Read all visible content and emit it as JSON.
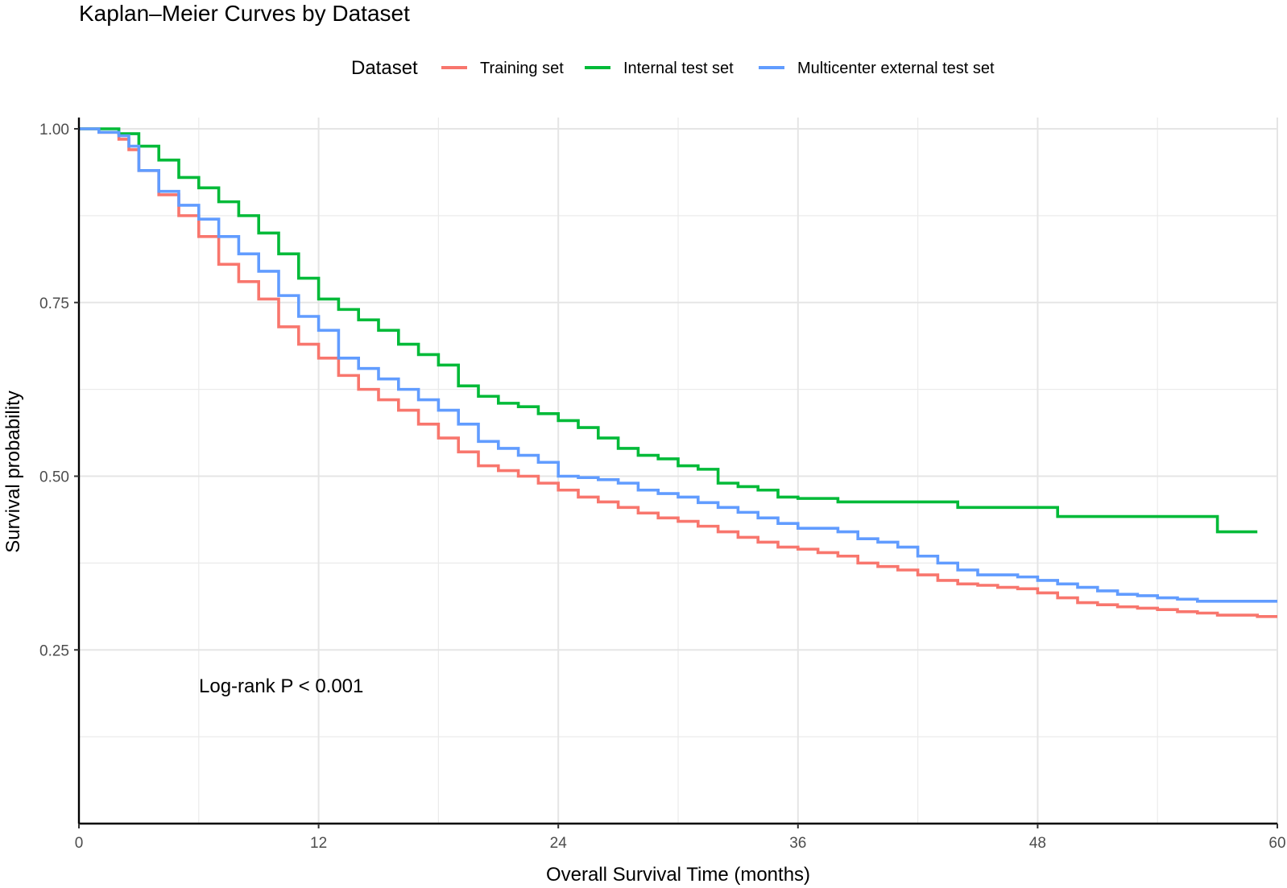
{
  "chart_data": {
    "type": "line",
    "step": true,
    "title": "Kaplan–Meier Curves by Dataset",
    "xlabel": "Overall Survival Time (months)",
    "ylabel": "Survival probability",
    "xlim": [
      0,
      60
    ],
    "ylim": [
      0,
      1
    ],
    "x_ticks": [
      0,
      12,
      24,
      36,
      48,
      60
    ],
    "x_tick_labels": [
      "0",
      "12",
      "24",
      "36",
      "48",
      "60"
    ],
    "y_ticks": [
      0.25,
      0.5,
      0.75,
      1.0
    ],
    "y_tick_labels": [
      "0.25",
      "0.50",
      "0.75",
      "1.00"
    ],
    "grid": true,
    "legend": {
      "title": "Dataset",
      "position": "top"
    },
    "annotation": "Log-rank P < 0.001",
    "series": [
      {
        "name": "Training set",
        "color": "#F8766D",
        "x": [
          0,
          1,
          2,
          2.5,
          3,
          4,
          5,
          6,
          7,
          8,
          9,
          10,
          11,
          12,
          13,
          14,
          15,
          16,
          17,
          18,
          19,
          20,
          21,
          22,
          23,
          24,
          25,
          26,
          27,
          28,
          29,
          30,
          31,
          32,
          33,
          34,
          35,
          36,
          37,
          38,
          39,
          40,
          41,
          42,
          43,
          44,
          45,
          46,
          47,
          48,
          49,
          50,
          51,
          52,
          53,
          54,
          55,
          56,
          57,
          58,
          59,
          60
        ],
        "values": [
          1.0,
          0.995,
          0.985,
          0.97,
          0.94,
          0.905,
          0.875,
          0.845,
          0.805,
          0.78,
          0.755,
          0.715,
          0.69,
          0.67,
          0.645,
          0.625,
          0.61,
          0.595,
          0.575,
          0.555,
          0.535,
          0.515,
          0.508,
          0.5,
          0.49,
          0.48,
          0.47,
          0.463,
          0.455,
          0.447,
          0.44,
          0.435,
          0.428,
          0.42,
          0.412,
          0.405,
          0.398,
          0.395,
          0.39,
          0.385,
          0.375,
          0.37,
          0.365,
          0.358,
          0.35,
          0.345,
          0.343,
          0.34,
          0.338,
          0.332,
          0.325,
          0.318,
          0.315,
          0.312,
          0.31,
          0.308,
          0.305,
          0.303,
          0.3,
          0.3,
          0.298,
          0.298
        ]
      },
      {
        "name": "Internal test set",
        "color": "#00BA38",
        "x": [
          0,
          1,
          2,
          3,
          4,
          5,
          6,
          7,
          8,
          9,
          10,
          11,
          12,
          13,
          14,
          15,
          16,
          17,
          18,
          19,
          20,
          21,
          22,
          23,
          24,
          25,
          26,
          27,
          28,
          29,
          30,
          31,
          32,
          33,
          34,
          35,
          36,
          37,
          38,
          44,
          49,
          57,
          59
        ],
        "values": [
          1.0,
          1.0,
          0.993,
          0.975,
          0.955,
          0.93,
          0.915,
          0.895,
          0.875,
          0.85,
          0.82,
          0.785,
          0.755,
          0.74,
          0.725,
          0.71,
          0.69,
          0.675,
          0.66,
          0.63,
          0.615,
          0.605,
          0.6,
          0.59,
          0.58,
          0.57,
          0.555,
          0.54,
          0.53,
          0.525,
          0.515,
          0.51,
          0.49,
          0.485,
          0.48,
          0.47,
          0.468,
          0.468,
          0.463,
          0.455,
          0.442,
          0.42,
          0.42
        ]
      },
      {
        "name": "Multicenter external test set",
        "color": "#619CFF",
        "x": [
          0,
          1,
          2,
          2.5,
          3,
          4,
          5,
          6,
          7,
          8,
          9,
          10,
          11,
          12,
          13,
          14,
          15,
          16,
          17,
          18,
          19,
          20,
          21,
          22,
          23,
          24,
          25,
          26,
          27,
          28,
          29,
          30,
          31,
          32,
          33,
          34,
          35,
          36,
          37,
          38,
          39,
          40,
          41,
          42,
          43,
          44,
          45,
          46,
          47,
          48,
          49,
          50,
          51,
          52,
          53,
          54,
          55,
          56,
          57,
          58,
          59,
          60
        ],
        "values": [
          1.0,
          0.995,
          0.99,
          0.975,
          0.94,
          0.91,
          0.89,
          0.87,
          0.845,
          0.82,
          0.795,
          0.76,
          0.73,
          0.71,
          0.67,
          0.655,
          0.64,
          0.625,
          0.61,
          0.595,
          0.575,
          0.55,
          0.54,
          0.53,
          0.52,
          0.5,
          0.498,
          0.495,
          0.49,
          0.48,
          0.475,
          0.47,
          0.462,
          0.455,
          0.448,
          0.44,
          0.432,
          0.425,
          0.425,
          0.42,
          0.41,
          0.405,
          0.398,
          0.385,
          0.375,
          0.365,
          0.358,
          0.358,
          0.355,
          0.35,
          0.345,
          0.34,
          0.335,
          0.33,
          0.328,
          0.325,
          0.323,
          0.32,
          0.32,
          0.32,
          0.32,
          0.32
        ]
      }
    ]
  }
}
